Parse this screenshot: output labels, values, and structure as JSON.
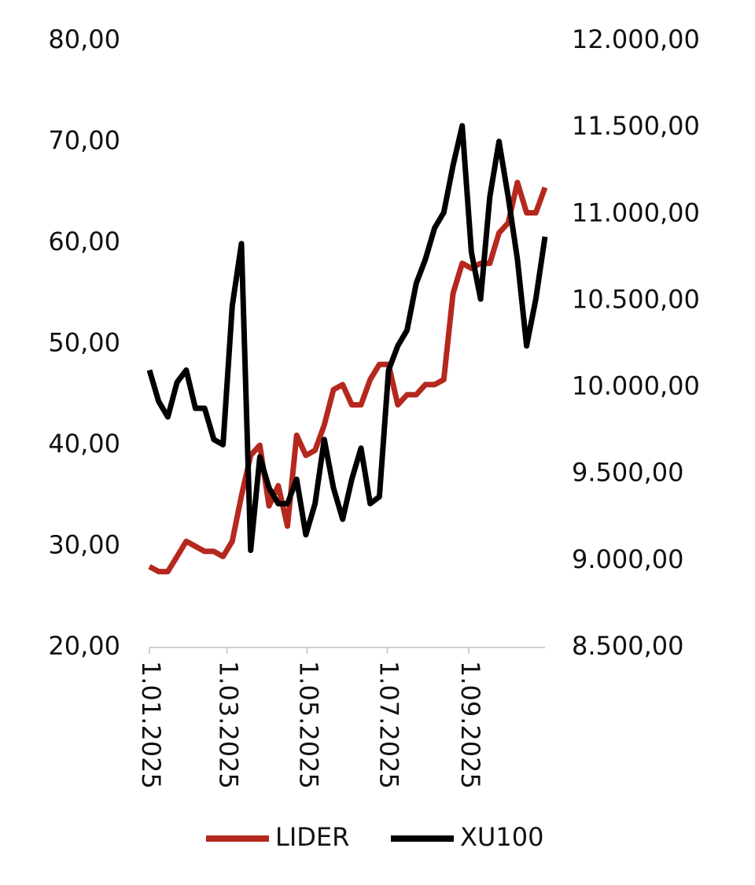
{
  "chart_data": {
    "type": "line",
    "x": [
      "2025-01-01",
      "2025-01-08",
      "2025-01-15",
      "2025-01-22",
      "2025-01-29",
      "2025-02-05",
      "2025-02-12",
      "2025-02-19",
      "2025-02-26",
      "2025-03-05",
      "2025-03-12",
      "2025-03-19",
      "2025-03-26",
      "2025-04-02",
      "2025-04-09",
      "2025-04-16",
      "2025-04-23",
      "2025-04-30",
      "2025-05-07",
      "2025-05-14",
      "2025-05-21",
      "2025-05-28",
      "2025-06-04",
      "2025-06-11",
      "2025-06-18",
      "2025-06-25",
      "2025-07-02",
      "2025-07-09",
      "2025-07-16",
      "2025-07-23",
      "2025-07-30",
      "2025-08-06",
      "2025-08-13",
      "2025-08-20",
      "2025-08-27",
      "2025-09-03",
      "2025-09-10",
      "2025-09-17",
      "2025-09-24",
      "2025-10-01",
      "2025-10-08",
      "2025-10-15",
      "2025-10-22",
      "2025-10-29"
    ],
    "series": [
      {
        "name": "LIDER",
        "color": "#b5281e",
        "values": [
          28,
          27.5,
          27.5,
          29,
          30.5,
          30,
          29.5,
          29.5,
          29,
          30.5,
          35,
          39,
          40,
          34,
          36,
          32,
          41,
          39,
          39.5,
          42,
          45.5,
          46,
          44,
          44,
          46.5,
          48,
          48,
          44,
          45,
          45,
          46,
          46,
          46.5,
          55,
          58,
          57.5,
          58,
          58,
          61,
          62,
          66,
          63,
          63,
          65.5
        ]
      },
      {
        "name": "XU100",
        "color": "#000000",
        "axis": "y2",
        "values": [
          10100,
          9920,
          9830,
          10030,
          10100,
          9880,
          9880,
          9700,
          9670,
          10470,
          10830,
          9060,
          9600,
          9420,
          9330,
          9330,
          9470,
          9150,
          9330,
          9700,
          9420,
          9240,
          9470,
          9650,
          9330,
          9370,
          10100,
          10240,
          10330,
          10600,
          10740,
          10920,
          11010,
          11280,
          11510,
          10780,
          10510,
          11100,
          11420,
          11100,
          10740,
          10240,
          10510,
          10870
        ]
      }
    ],
    "xlim": [
      "2025-01-01",
      "2025-10-29"
    ],
    "xticks": [
      {
        "value": "2025-01-01",
        "label": "1.01.2025"
      },
      {
        "value": "2025-03-01",
        "label": "1.03.2025"
      },
      {
        "value": "2025-05-01",
        "label": "1.05.2025"
      },
      {
        "value": "2025-07-01",
        "label": "1.07.2025"
      },
      {
        "value": "2025-09-01",
        "label": "1.09.2025"
      }
    ],
    "ylim": [
      20,
      80
    ],
    "yticks": [
      {
        "value": 20,
        "label": "20,00"
      },
      {
        "value": 30,
        "label": "30,00"
      },
      {
        "value": 40,
        "label": "40,00"
      },
      {
        "value": 50,
        "label": "50,00"
      },
      {
        "value": 60,
        "label": "60,00"
      },
      {
        "value": 70,
        "label": "70,00"
      },
      {
        "value": 80,
        "label": "80,00"
      }
    ],
    "y2lim": [
      8500,
      12000
    ],
    "y2ticks": [
      {
        "value": 8500,
        "label": "8.500,00"
      },
      {
        "value": 9000,
        "label": "9.000,00"
      },
      {
        "value": 9500,
        "label": "9.500,00"
      },
      {
        "value": 10000,
        "label": "10.000,00"
      },
      {
        "value": 10500,
        "label": "10.500,00"
      },
      {
        "value": 11000,
        "label": "11.000,00"
      },
      {
        "value": 11500,
        "label": "11.500,00"
      },
      {
        "value": 12000,
        "label": "12.000,00"
      }
    ],
    "legend": "bottom"
  }
}
